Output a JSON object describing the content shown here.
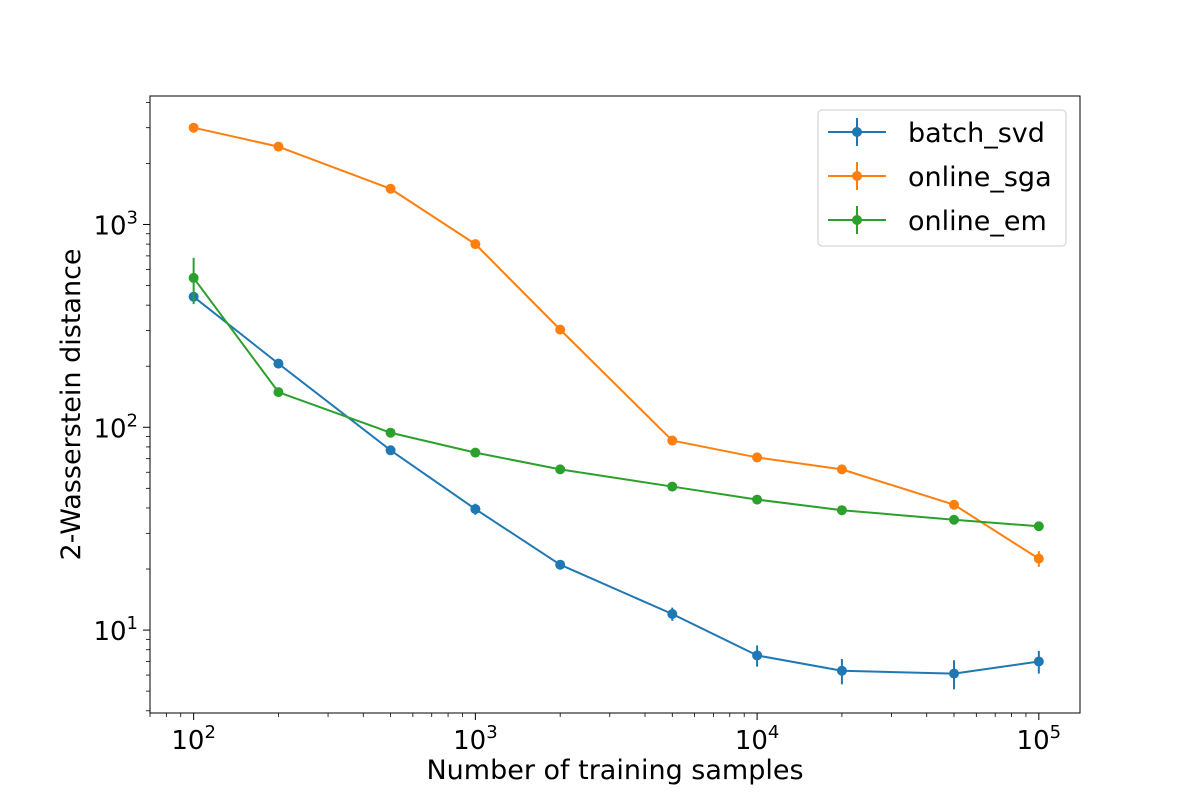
{
  "chart_data": {
    "type": "line",
    "xscale": "log",
    "yscale": "log",
    "xlabel": "Number of training samples",
    "ylabel": "2-Wasserstein distance",
    "xlim": [
      70,
      140000
    ],
    "ylim": [
      3.9,
      4300
    ],
    "x_ticks": [
      {
        "value": 100,
        "base": "10",
        "exp": "2"
      },
      {
        "value": 1000,
        "base": "10",
        "exp": "3"
      },
      {
        "value": 10000,
        "base": "10",
        "exp": "4"
      },
      {
        "value": 100000,
        "base": "10",
        "exp": "5"
      }
    ],
    "y_ticks": [
      {
        "value": 10,
        "base": "10",
        "exp": "1"
      },
      {
        "value": 100,
        "base": "10",
        "exp": "2"
      },
      {
        "value": 1000,
        "base": "10",
        "exp": "3"
      }
    ],
    "grid": false,
    "legend_position": "top-right",
    "x": [
      100,
      200,
      500,
      1000,
      2000,
      5000,
      10000,
      20000,
      50000,
      100000
    ],
    "series": [
      {
        "name": "batch_svd",
        "color": "#1f77b4",
        "values": [
          440,
          206,
          77,
          39.5,
          21,
          12,
          7.5,
          6.3,
          6.1,
          7.0
        ],
        "errors": [
          25,
          8,
          3,
          2.5,
          0.6,
          0.9,
          0.9,
          0.9,
          1.0,
          0.9
        ]
      },
      {
        "name": "online_sga",
        "color": "#ff7f0e",
        "values": [
          3000,
          2420,
          1500,
          800,
          303,
          86,
          71,
          62,
          41.5,
          22.5
        ],
        "errors": [
          40,
          30,
          20,
          15,
          6,
          1.5,
          1.0,
          1.0,
          1.5,
          2.0
        ]
      },
      {
        "name": "online_em",
        "color": "#2ca02c",
        "values": [
          545,
          149,
          94,
          75,
          62,
          51,
          44,
          39,
          35,
          32.5
        ],
        "errors": [
          140,
          5,
          3,
          2,
          1.5,
          1.2,
          1.0,
          0.8,
          0.8,
          0.7
        ]
      }
    ]
  }
}
